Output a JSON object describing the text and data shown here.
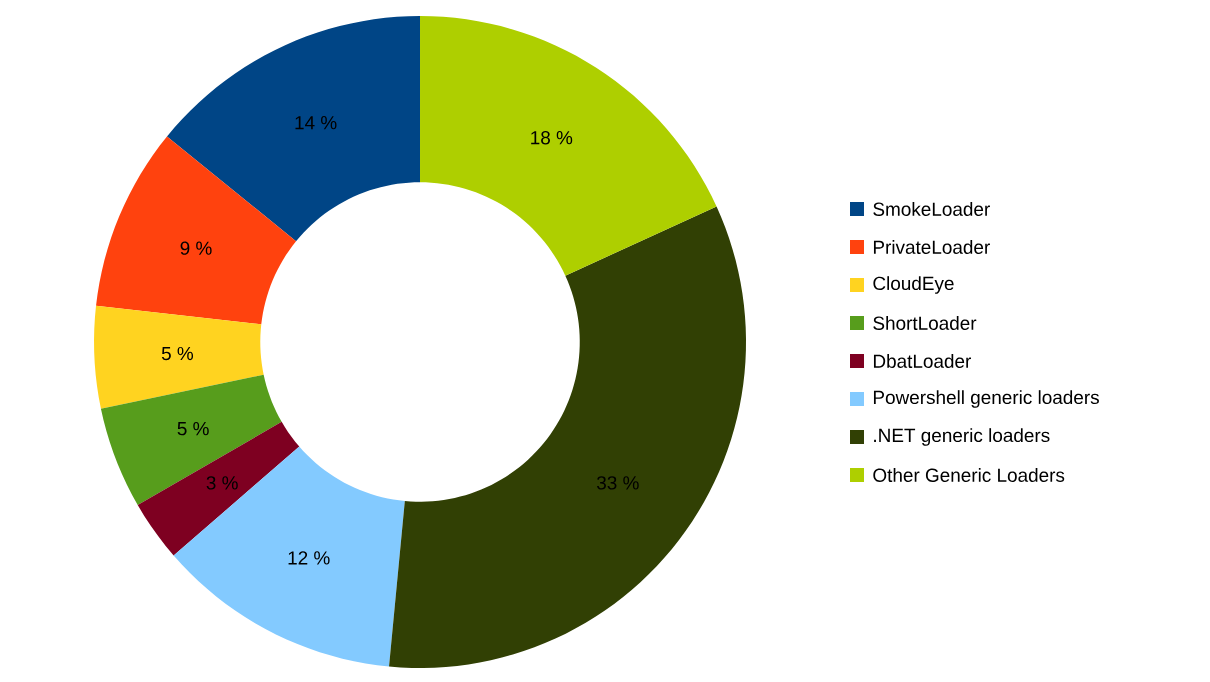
{
  "chart_data": {
    "type": "donut",
    "categories": [
      "SmokeLoader",
      "PrivateLoader",
      "CloudEye",
      "ShortLoader",
      "DbatLoader",
      "Powershell generic loaders",
      ".NET generic loaders",
      "Other Generic Loaders"
    ],
    "values": [
      14,
      9,
      5,
      5,
      3,
      12,
      33,
      18
    ],
    "value_labels": [
      "14 %",
      "9 %",
      "5 %",
      "5 %",
      "3 %",
      "12 %",
      "33 %",
      "18 %"
    ],
    "colors": [
      "#004586",
      "#ff420e",
      "#ffd320",
      "#579d1c",
      "#7e0021",
      "#83caff",
      "#314004",
      "#aecf00"
    ],
    "legend": "right"
  }
}
